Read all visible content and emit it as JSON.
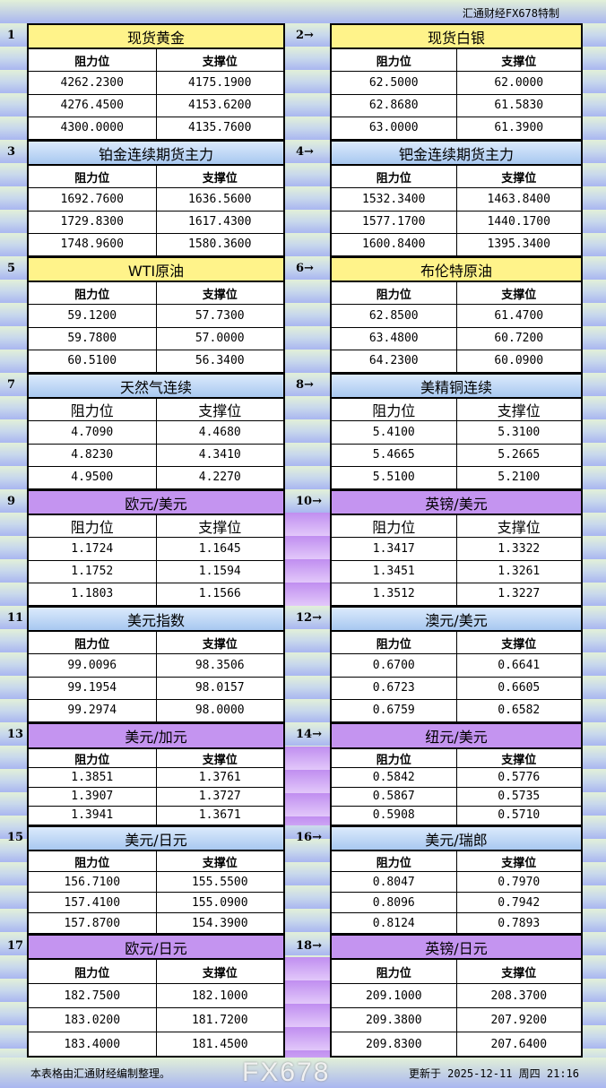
{
  "brand": "汇通财经FX678特制",
  "headers": {
    "resistance": "阻力位",
    "support": "支撑位"
  },
  "footer": {
    "note": "本表格由汇通财经编制整理。",
    "updated": "更新于 2025-12-11 周四 21:16"
  },
  "watermark": "FX678",
  "colors": {
    "yellow": "#fff38a",
    "blue": "#a8c8f0",
    "purple": "#c494f0"
  },
  "pairs": [
    {
      "color": "yellow",
      "items": [
        {
          "num": "1",
          "title": "现货黄金",
          "rows": [
            [
              "4262.2300",
              "4175.1900"
            ],
            [
              "4276.4500",
              "4153.6200"
            ],
            [
              "4300.0000",
              "4135.7600"
            ]
          ]
        },
        {
          "num": "2→",
          "title": "现货白银",
          "rows": [
            [
              "62.5000",
              "62.0000"
            ],
            [
              "62.8680",
              "61.5830"
            ],
            [
              "63.0000",
              "61.3900"
            ]
          ]
        }
      ]
    },
    {
      "color": "blue",
      "items": [
        {
          "num": "3",
          "title": "铂金连续期货主力",
          "rows": [
            [
              "1692.7600",
              "1636.5600"
            ],
            [
              "1729.8300",
              "1617.4300"
            ],
            [
              "1748.9600",
              "1580.3600"
            ]
          ]
        },
        {
          "num": "4→",
          "title": "钯金连续期货主力",
          "rows": [
            [
              "1532.3400",
              "1463.8400"
            ],
            [
              "1577.1700",
              "1440.1700"
            ],
            [
              "1600.8400",
              "1395.3400"
            ]
          ]
        }
      ]
    },
    {
      "color": "yellow",
      "items": [
        {
          "num": "5",
          "title": "WTI原油",
          "rows": [
            [
              "59.1200",
              "57.7300"
            ],
            [
              "59.7800",
              "57.0000"
            ],
            [
              "60.5100",
              "56.3400"
            ]
          ]
        },
        {
          "num": "6→",
          "title": "布伦特原油",
          "rows": [
            [
              "62.8500",
              "61.4700"
            ],
            [
              "63.4800",
              "60.7200"
            ],
            [
              "64.2300",
              "60.0900"
            ]
          ]
        }
      ]
    },
    {
      "color": "blue",
      "items": [
        {
          "num": "7",
          "title": "天然气连续",
          "rows": [
            [
              "4.7090",
              "4.4680"
            ],
            [
              "4.8230",
              "4.3410"
            ],
            [
              "4.9500",
              "4.2270"
            ]
          ]
        },
        {
          "num": "8→",
          "title": "美精铜连续",
          "rows": [
            [
              "5.4100",
              "5.3100"
            ],
            [
              "5.4665",
              "5.2665"
            ],
            [
              "5.5100",
              "5.2100"
            ]
          ]
        }
      ]
    },
    {
      "color": "purple",
      "items": [
        {
          "num": "9",
          "title": "欧元/美元",
          "rows": [
            [
              "1.1724",
              "1.1645"
            ],
            [
              "1.1752",
              "1.1594"
            ],
            [
              "1.1803",
              "1.1566"
            ]
          ]
        },
        {
          "num": "10→",
          "title": "英镑/美元",
          "rows": [
            [
              "1.3417",
              "1.3322"
            ],
            [
              "1.3451",
              "1.3261"
            ],
            [
              "1.3512",
              "1.3227"
            ]
          ]
        }
      ]
    },
    {
      "color": "blue",
      "items": [
        {
          "num": "11",
          "title": "美元指数",
          "rows": [
            [
              "99.0096",
              "98.3506"
            ],
            [
              "99.1954",
              "98.0157"
            ],
            [
              "99.2974",
              "98.0000"
            ]
          ]
        },
        {
          "num": "12→",
          "title": "澳元/美元",
          "rows": [
            [
              "0.6700",
              "0.6641"
            ],
            [
              "0.6723",
              "0.6605"
            ],
            [
              "0.6759",
              "0.6582"
            ]
          ]
        }
      ]
    },
    {
      "color": "purple",
      "items": [
        {
          "num": "13",
          "title": "美元/加元",
          "rows": [
            [
              "1.3851",
              "1.3761"
            ],
            [
              "1.3907",
              "1.3727"
            ],
            [
              "1.3941",
              "1.3671"
            ]
          ]
        },
        {
          "num": "14→",
          "title": "纽元/美元",
          "rows": [
            [
              "0.5842",
              "0.5776"
            ],
            [
              "0.5867",
              "0.5735"
            ],
            [
              "0.5908",
              "0.5710"
            ]
          ]
        }
      ]
    },
    {
      "color": "blue",
      "items": [
        {
          "num": "15",
          "title": "美元/日元",
          "rows": [
            [
              "156.7100",
              "155.5500"
            ],
            [
              "157.4100",
              "155.0900"
            ],
            [
              "157.8700",
              "154.3900"
            ]
          ]
        },
        {
          "num": "16→",
          "title": "美元/瑞郎",
          "rows": [
            [
              "0.8047",
              "0.7970"
            ],
            [
              "0.8096",
              "0.7942"
            ],
            [
              "0.8124",
              "0.7893"
            ]
          ]
        }
      ]
    },
    {
      "color": "purple",
      "items": [
        {
          "num": "17",
          "title": "欧元/日元",
          "rows": [
            [
              "182.7500",
              "182.1000"
            ],
            [
              "183.0200",
              "181.7200"
            ],
            [
              "183.4000",
              "181.4500"
            ]
          ]
        },
        {
          "num": "18→",
          "title": "英镑/日元",
          "rows": [
            [
              "209.1000",
              "208.3700"
            ],
            [
              "209.3800",
              "207.9200"
            ],
            [
              "209.8300",
              "207.6400"
            ]
          ]
        }
      ]
    }
  ]
}
